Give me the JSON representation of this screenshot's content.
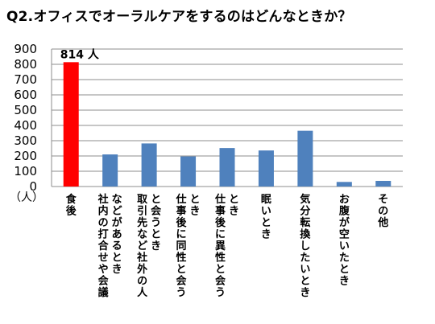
{
  "title": "Q2.オフィスでオーラルケアをするのはどんなときか？",
  "chart_data": {
    "type": "bar",
    "categories": [
      "食後",
      "社内の打合せや会議などがあるとき",
      "取引先など社外の人と会うとき",
      "仕事後に同性と会うとき",
      "仕事後に異性と会うとき",
      "眠いとき",
      "気分転換したいとき",
      "お腹が空いたとき",
      "その他"
    ],
    "category_lines": [
      [
        "食後"
      ],
      [
        "社内の打合せや会議",
        "などがあるとき"
      ],
      [
        "取引先など社外の人",
        "と会うとき"
      ],
      [
        "仕事後に同性と会う",
        "とき"
      ],
      [
        "仕事後に異性と会う",
        "とき"
      ],
      [
        "眠いとき"
      ],
      [
        "気分転換したいとき"
      ],
      [
        "お腹が空いたとき"
      ],
      [
        "その他"
      ]
    ],
    "values": [
      814,
      210,
      282,
      197,
      252,
      236,
      365,
      30,
      37
    ],
    "colors": [
      "#ff0000",
      "#4f81bd",
      "#4f81bd",
      "#4f81bd",
      "#4f81bd",
      "#4f81bd",
      "#4f81bd",
      "#4f81bd",
      "#4f81bd"
    ],
    "ylim": [
      0,
      900
    ],
    "yticks": [
      0,
      100,
      200,
      300,
      400,
      500,
      600,
      700,
      800,
      900
    ],
    "ylabel": "（人）",
    "grid": true,
    "data_labels": [
      {
        "index": 0,
        "text": "814 人"
      }
    ]
  }
}
